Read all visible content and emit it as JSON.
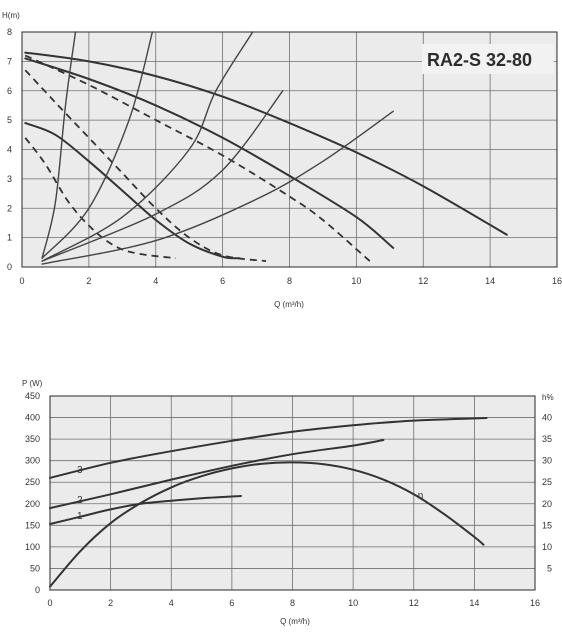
{
  "chart_data": [
    {
      "type": "line",
      "title": "RA2-S 32-80",
      "ylabel": "H(m)",
      "xlabel": "Q (m³/h)",
      "xlim": [
        0,
        16
      ],
      "ylim": [
        0,
        8
      ],
      "x_ticks": [
        "0",
        "2",
        "4",
        "6",
        "8",
        "10",
        "12",
        "14",
        "16"
      ],
      "y_ticks": [
        "0",
        "1",
        "2",
        "3",
        "4",
        "5",
        "6",
        "7",
        "8"
      ],
      "grid": true,
      "series": [
        {
          "style": "solid",
          "points": [
            [
              0.1,
              7.3
            ],
            [
              2,
              7.0
            ],
            [
              4,
              6.5
            ],
            [
              6,
              5.8
            ],
            [
              8,
              4.9
            ],
            [
              10,
              3.9
            ],
            [
              12,
              2.75
            ],
            [
              14.5,
              1.1
            ]
          ]
        },
        {
          "style": "solid",
          "points": [
            [
              0.1,
              7.1
            ],
            [
              2,
              6.4
            ],
            [
              4,
              5.5
            ],
            [
              6,
              4.4
            ],
            [
              8,
              3.1
            ],
            [
              10,
              1.7
            ],
            [
              11.1,
              0.65
            ]
          ]
        },
        {
          "style": "solid",
          "points": [
            [
              0.1,
              4.9
            ],
            [
              1,
              4.5
            ],
            [
              2,
              3.6
            ],
            [
              3,
              2.6
            ],
            [
              4,
              1.6
            ],
            [
              5,
              0.8
            ],
            [
              6,
              0.35
            ],
            [
              6.5,
              0.3
            ]
          ]
        },
        {
          "style": "dashed",
          "points": [
            [
              0.1,
              7.2
            ],
            [
              2,
              6.2
            ],
            [
              4,
              5.0
            ],
            [
              6,
              3.8
            ],
            [
              8,
              2.4
            ],
            [
              9,
              1.6
            ],
            [
              10.4,
              0.2
            ]
          ]
        },
        {
          "style": "dashed",
          "points": [
            [
              0.1,
              6.7
            ],
            [
              1,
              5.6
            ],
            [
              2,
              4.4
            ],
            [
              3,
              3.2
            ],
            [
              4,
              2.0
            ],
            [
              5,
              1.0
            ],
            [
              6,
              0.4
            ],
            [
              7.3,
              0.2
            ]
          ]
        },
        {
          "style": "dashed",
          "points": [
            [
              0.1,
              4.4
            ],
            [
              0.7,
              3.5
            ],
            [
              1.4,
              2.2
            ],
            [
              2.1,
              1.3
            ],
            [
              2.8,
              0.7
            ],
            [
              3.5,
              0.45
            ],
            [
              4.6,
              0.3
            ]
          ]
        },
        {
          "style": "thin",
          "points": [
            [
              0.6,
              0.3
            ],
            [
              1.0,
              2.2
            ],
            [
              1.3,
              5.5
            ],
            [
              1.6,
              8.0
            ]
          ]
        },
        {
          "style": "thin",
          "points": [
            [
              0.6,
              0.3
            ],
            [
              2.0,
              2.0
            ],
            [
              3.2,
              5.0
            ],
            [
              3.9,
              8.0
            ]
          ]
        },
        {
          "style": "thin",
          "points": [
            [
              0.6,
              0.2
            ],
            [
              3.0,
              1.7
            ],
            [
              5.0,
              4.0
            ],
            [
              5.8,
              6.0
            ],
            [
              6.9,
              8.0
            ]
          ]
        },
        {
          "style": "thin",
          "points": [
            [
              0.6,
              0.2
            ],
            [
              4.0,
              1.8
            ],
            [
              6.0,
              3.3
            ],
            [
              7.8,
              6.0
            ]
          ]
        },
        {
          "style": "thin",
          "points": [
            [
              0.6,
              0.1
            ],
            [
              4.0,
              0.9
            ],
            [
              7.0,
              2.3
            ],
            [
              9.0,
              3.6
            ],
            [
              11.1,
              5.3
            ]
          ]
        }
      ]
    },
    {
      "type": "line",
      "ylabel": "P (W)",
      "y2label": "h%",
      "xlabel": "Q (m³/h)",
      "xlim": [
        0,
        16
      ],
      "ylim": [
        0,
        450
      ],
      "y2lim": [
        0,
        45
      ],
      "x_ticks": [
        "0",
        "2",
        "4",
        "6",
        "8",
        "10",
        "12",
        "14",
        "16"
      ],
      "y_ticks": [
        "0",
        "50",
        "100",
        "150",
        "200",
        "250",
        "300",
        "350",
        "400",
        "450"
      ],
      "y2_ticks": [
        "5",
        "10",
        "15",
        "20",
        "25",
        "30",
        "35",
        "40"
      ],
      "grid": true,
      "series": [
        {
          "name": "1",
          "axis": "left",
          "points": [
            [
              0,
              153
            ],
            [
              1,
              170
            ],
            [
              2,
              187
            ],
            [
              3,
              200
            ],
            [
              4,
              207
            ],
            [
              5,
              213
            ],
            [
              6.3,
              218
            ]
          ]
        },
        {
          "name": "2",
          "axis": "left",
          "points": [
            [
              0,
              190
            ],
            [
              2,
              222
            ],
            [
              4,
              256
            ],
            [
              6,
              288
            ],
            [
              8,
              315
            ],
            [
              10,
              335
            ],
            [
              11,
              348
            ]
          ]
        },
        {
          "name": "3",
          "axis": "left",
          "points": [
            [
              0,
              260
            ],
            [
              2,
              295
            ],
            [
              4,
              322
            ],
            [
              6,
              346
            ],
            [
              8,
              367
            ],
            [
              10,
              382
            ],
            [
              12,
              393
            ],
            [
              14.4,
              399
            ]
          ]
        },
        {
          "name": "η",
          "axis": "right",
          "points": [
            [
              0,
              0.8
            ],
            [
              1,
              9
            ],
            [
              2,
              15.5
            ],
            [
              3,
              20.2
            ],
            [
              4,
              23.8
            ],
            [
              5,
              26.4
            ],
            [
              6,
              28.2
            ],
            [
              7,
              29.3
            ],
            [
              8,
              29.6
            ],
            [
              9,
              29.2
            ],
            [
              10,
              27.9
            ],
            [
              11,
              25.6
            ],
            [
              12,
              22.2
            ],
            [
              13,
              17.6
            ],
            [
              14,
              12.3
            ],
            [
              14.3,
              10.5
            ]
          ]
        }
      ]
    }
  ]
}
